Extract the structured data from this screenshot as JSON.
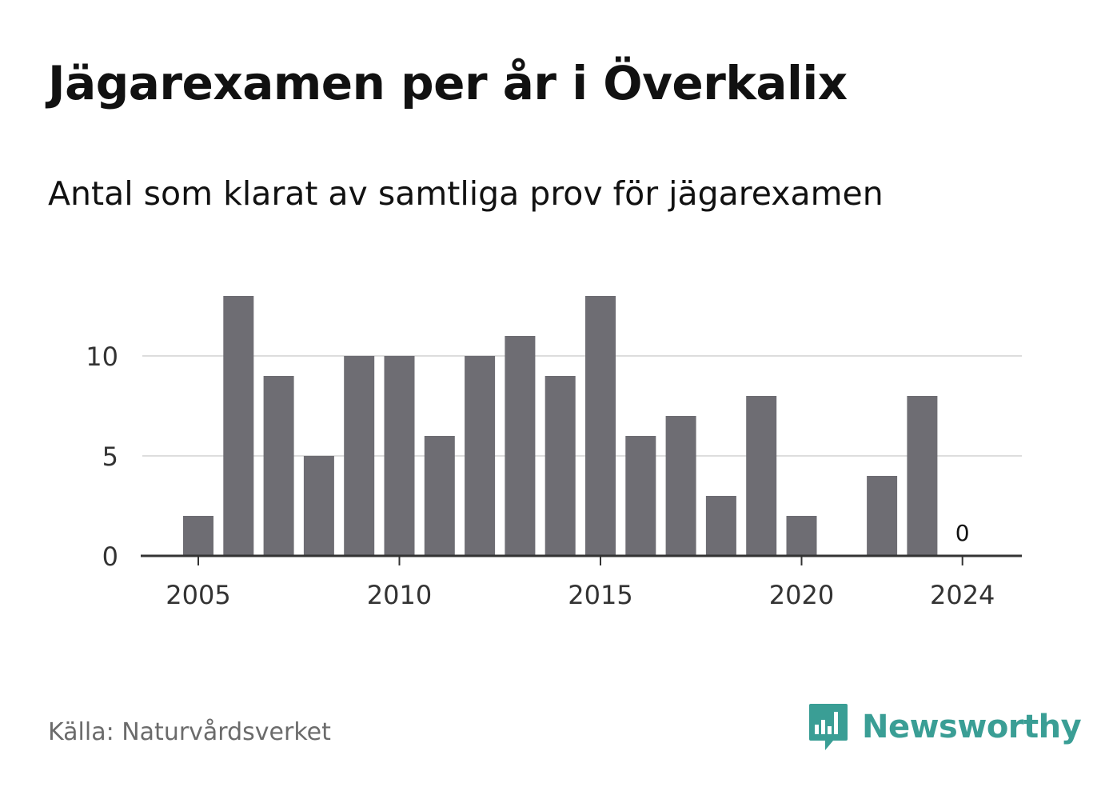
{
  "title": "Jägarexamen per år i Överkalix",
  "subtitle": "Antal som klarat av samtliga prov för jägarexamen",
  "source": "Källa: Naturvårdsverket",
  "brand": {
    "name": "Newsworthy",
    "color": "#3a9e95",
    "icon": "newsworthy-logo-icon"
  },
  "colors": {
    "bar": "#6e6d73",
    "grid": "#dddddd",
    "axis": "#333333",
    "text": "#333333"
  },
  "chart_data": {
    "type": "bar",
    "title": "Jägarexamen per år i Överkalix",
    "subtitle": "Antal som klarat av samtliga prov för jägarexamen",
    "x": [
      2005,
      2006,
      2007,
      2008,
      2009,
      2010,
      2011,
      2012,
      2013,
      2014,
      2015,
      2016,
      2017,
      2018,
      2019,
      2020,
      2021,
      2022,
      2023,
      2024
    ],
    "values": [
      2,
      13,
      9,
      5,
      10,
      10,
      6,
      10,
      11,
      9,
      13,
      6,
      7,
      3,
      8,
      2,
      0,
      4,
      8,
      0
    ],
    "x_ticks": [
      "2005",
      "2010",
      "2015",
      "2020",
      "2024"
    ],
    "y_ticks": [
      "0",
      "5",
      "10"
    ],
    "ylim": [
      0,
      13
    ],
    "grid": true,
    "annotations": [
      {
        "x": 2024,
        "text": "0"
      }
    ]
  }
}
